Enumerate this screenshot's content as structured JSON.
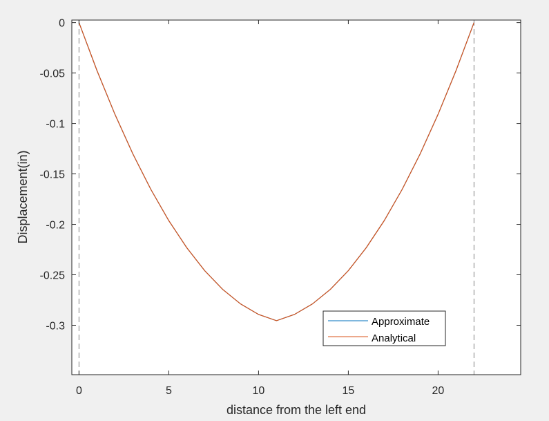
{
  "colors": {
    "figure_background": "#f0f0f0",
    "axes_background": "#ffffff",
    "axes_line": "#262626",
    "approximate": "#0072bd",
    "analytical": "#d95319",
    "boundary_line": "#808080"
  },
  "chart_data": {
    "type": "line",
    "title": "",
    "xlabel": "distance from the left end",
    "ylabel": "Displacement(in)",
    "xlim": [
      -0.4,
      24.6
    ],
    "ylim": [
      -0.349,
      0.0025
    ],
    "xticks": [
      0,
      5,
      10,
      15,
      20
    ],
    "xtick_labels": [
      "0",
      "5",
      "10",
      "15",
      "20"
    ],
    "yticks": [
      0,
      -0.05,
      -0.1,
      -0.15,
      -0.2,
      -0.25,
      -0.3
    ],
    "ytick_labels": [
      "0",
      "-0.05",
      "-0.1",
      "-0.15",
      "-0.2",
      "-0.25",
      "-0.3"
    ],
    "grid": false,
    "legend_position": "bottom-right",
    "series": [
      {
        "name": "Approximate",
        "color": "#0072bd",
        "x": [
          0,
          1,
          2,
          3,
          4,
          5,
          6,
          7,
          8,
          9,
          10,
          11,
          12,
          13,
          14,
          15,
          16,
          17,
          18,
          19,
          20,
          21,
          22
        ],
        "y": [
          0,
          -0.0475,
          -0.0909,
          -0.1302,
          -0.1653,
          -0.1963,
          -0.2231,
          -0.2459,
          -0.2644,
          -0.2789,
          -0.2893,
          -0.2955,
          -0.2893,
          -0.2789,
          -0.2644,
          -0.2459,
          -0.2231,
          -0.1963,
          -0.1653,
          -0.1302,
          -0.0909,
          -0.0475,
          0
        ]
      },
      {
        "name": "Analytical",
        "color": "#d95319",
        "x": [
          0,
          1,
          2,
          3,
          4,
          5,
          6,
          7,
          8,
          9,
          10,
          11,
          12,
          13,
          14,
          15,
          16,
          17,
          18,
          19,
          20,
          21,
          22
        ],
        "y": [
          0,
          -0.0475,
          -0.0909,
          -0.1302,
          -0.1653,
          -0.1963,
          -0.2231,
          -0.2459,
          -0.2644,
          -0.2789,
          -0.2893,
          -0.2955,
          -0.2893,
          -0.2789,
          -0.2644,
          -0.2459,
          -0.2231,
          -0.1963,
          -0.1653,
          -0.1302,
          -0.0909,
          -0.0475,
          0
        ]
      }
    ],
    "reference_lines": [
      {
        "type": "vertical",
        "x": 0,
        "style": "dashed"
      },
      {
        "type": "vertical",
        "x": 22,
        "style": "dashed"
      }
    ]
  }
}
